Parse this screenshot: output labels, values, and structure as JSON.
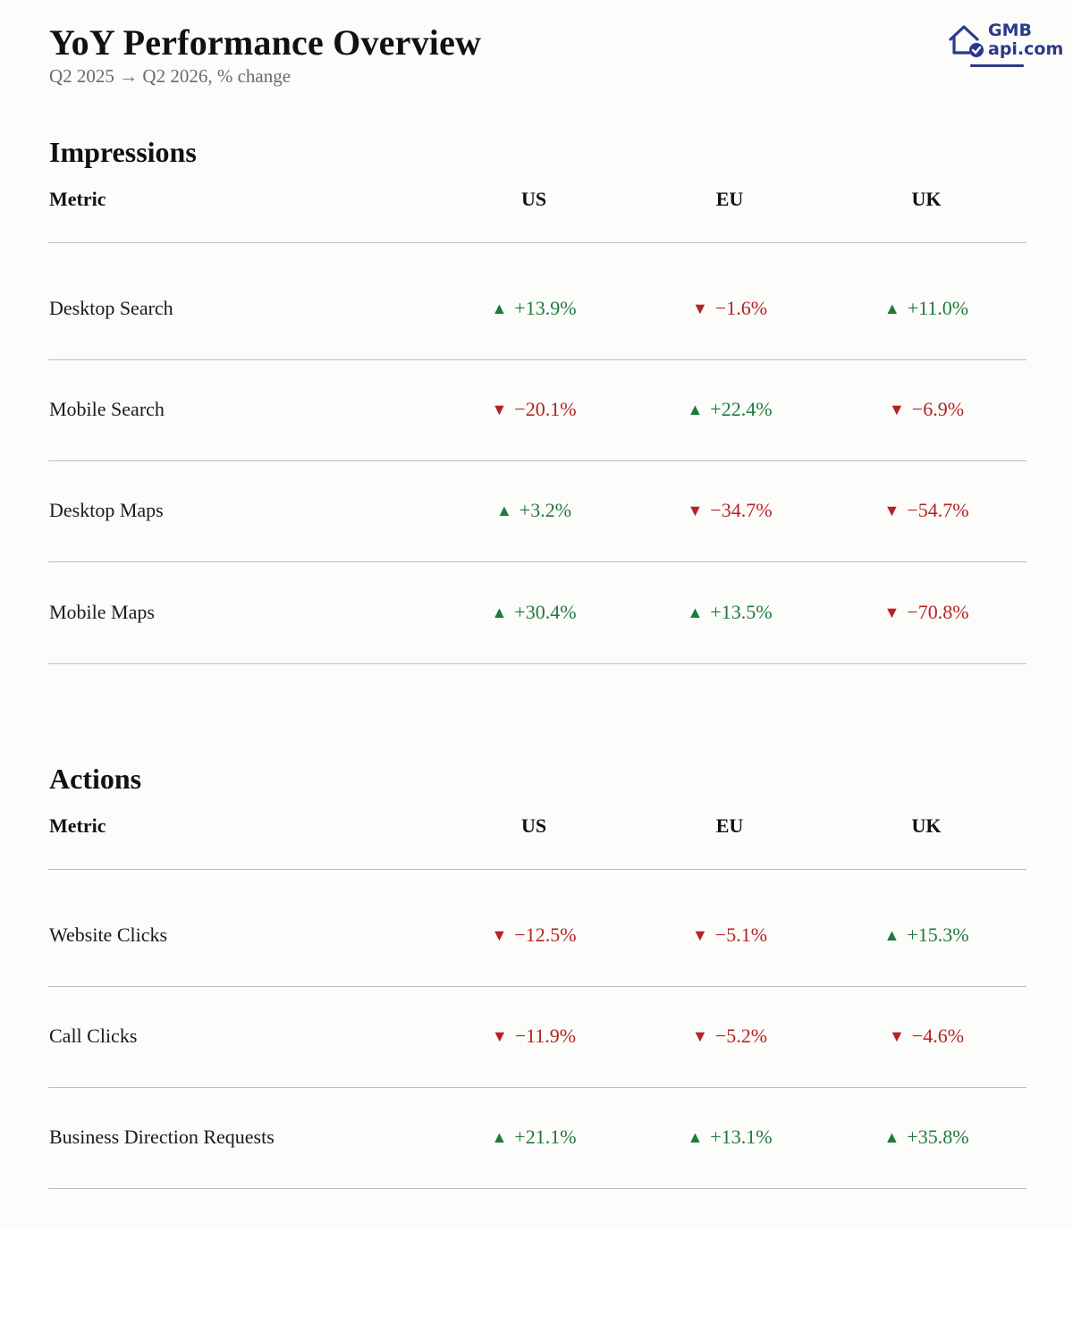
{
  "header": {
    "title": "YoY Performance Overview",
    "subtitle": "Q2 2025 → Q2 2026, % change"
  },
  "logo": {
    "line1": "GMB",
    "line2": "api.com",
    "icon": "house-check-icon",
    "color": "#2a3a8a"
  },
  "colors": {
    "positive": "#1e7a3c",
    "negative": "#b42323"
  },
  "columns": [
    "Metric",
    "US",
    "EU",
    "UK"
  ],
  "sections": [
    {
      "title": "Impressions",
      "rows": [
        {
          "metric": "Desktop Search",
          "values": [
            {
              "dir": "up",
              "arrow": "▲",
              "text": "+13.9%"
            },
            {
              "dir": "down",
              "arrow": "▼",
              "text": "−1.6%"
            },
            {
              "dir": "up",
              "arrow": "▲",
              "text": "+11.0%"
            }
          ]
        },
        {
          "metric": "Mobile Search",
          "values": [
            {
              "dir": "down",
              "arrow": "▼",
              "text": "−20.1%"
            },
            {
              "dir": "up",
              "arrow": "▲",
              "text": "+22.4%"
            },
            {
              "dir": "down",
              "arrow": "▼",
              "text": "−6.9%"
            }
          ]
        },
        {
          "metric": "Desktop Maps",
          "values": [
            {
              "dir": "up",
              "arrow": "▲",
              "text": "+3.2%"
            },
            {
              "dir": "down",
              "arrow": "▼",
              "text": "−34.7%"
            },
            {
              "dir": "down",
              "arrow": "▼",
              "text": "−54.7%"
            }
          ]
        },
        {
          "metric": "Mobile Maps",
          "values": [
            {
              "dir": "up",
              "arrow": "▲",
              "text": "+30.4%"
            },
            {
              "dir": "up",
              "arrow": "▲",
              "text": "+13.5%"
            },
            {
              "dir": "down",
              "arrow": "▼",
              "text": "−70.8%"
            }
          ]
        }
      ]
    },
    {
      "title": "Actions",
      "rows": [
        {
          "metric": "Website Clicks",
          "values": [
            {
              "dir": "down",
              "arrow": "▼",
              "text": "−12.5%"
            },
            {
              "dir": "down",
              "arrow": "▼",
              "text": "−5.1%"
            },
            {
              "dir": "up",
              "arrow": "▲",
              "text": "+15.3%"
            }
          ]
        },
        {
          "metric": "Call Clicks",
          "values": [
            {
              "dir": "down",
              "arrow": "▼",
              "text": "−11.9%"
            },
            {
              "dir": "down",
              "arrow": "▼",
              "text": "−5.2%"
            },
            {
              "dir": "down",
              "arrow": "▼",
              "text": "−4.6%"
            }
          ]
        },
        {
          "metric": "Business Direction Requests",
          "values": [
            {
              "dir": "up",
              "arrow": "▲",
              "text": "+21.1%"
            },
            {
              "dir": "up",
              "arrow": "▲",
              "text": "+13.1%"
            },
            {
              "dir": "up",
              "arrow": "▲",
              "text": "+35.8%"
            }
          ]
        }
      ]
    }
  ]
}
